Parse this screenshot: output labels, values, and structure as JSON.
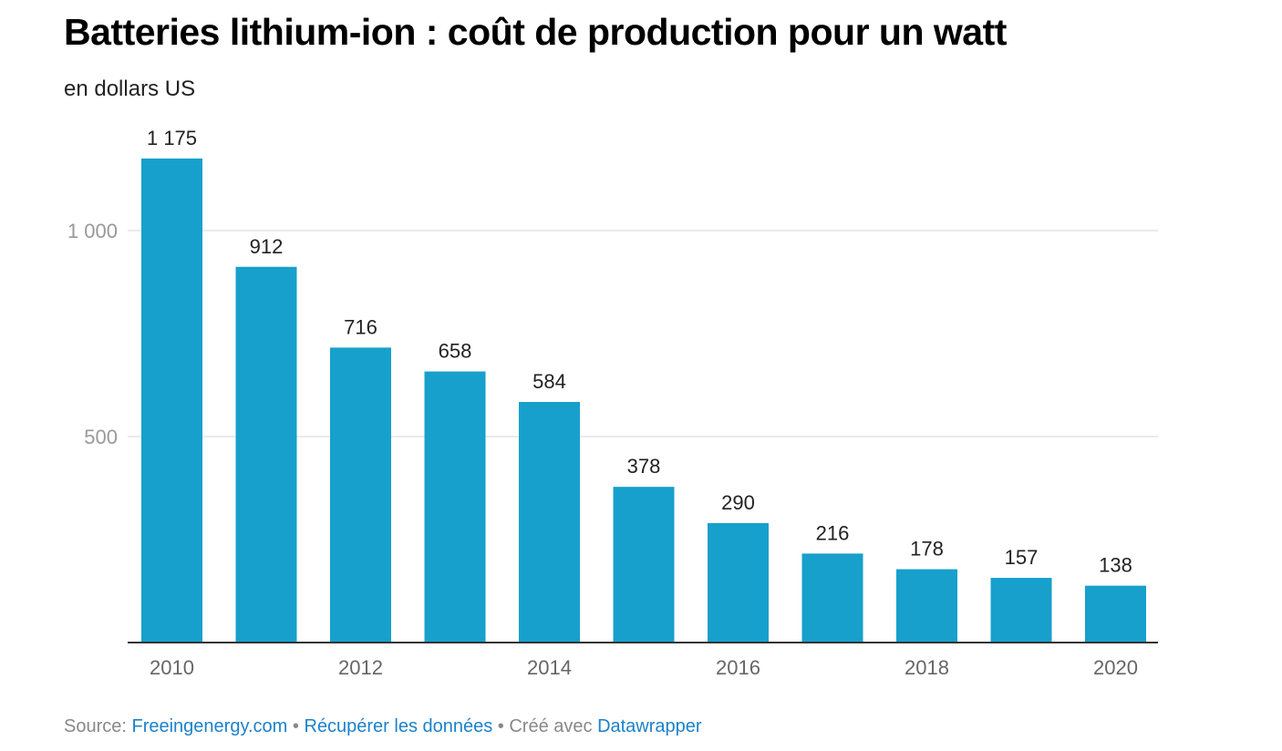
{
  "chart_data": {
    "type": "bar",
    "title": "Batteries lithium-ion : coût de production pour un watt",
    "subtitle": "en dollars US",
    "categories": [
      "2010",
      "2011",
      "2012",
      "2013",
      "2014",
      "2015",
      "2016",
      "2017",
      "2018",
      "2019",
      "2020"
    ],
    "values": [
      1175,
      912,
      716,
      658,
      584,
      378,
      290,
      216,
      178,
      157,
      138
    ],
    "value_labels": [
      "1 175",
      "912",
      "716",
      "658",
      "584",
      "378",
      "290",
      "216",
      "178",
      "157",
      "138"
    ],
    "x_tick_labels": [
      "2010",
      "",
      "2012",
      "",
      "2014",
      "",
      "2016",
      "",
      "2018",
      "",
      "2020"
    ],
    "y_ticks": [
      500,
      1000
    ],
    "y_tick_labels": [
      "500",
      "1 000"
    ],
    "ylim": [
      0,
      1200
    ],
    "grid": true,
    "bar_color": "#17a0cc"
  },
  "footer": {
    "source_prefix": "Source: ",
    "source_link": "Freeingenergy.com",
    "separator1": " • ",
    "data_link": "Récupérer les données",
    "separator2": " • Créé avec ",
    "tool_link": "Datawrapper"
  }
}
